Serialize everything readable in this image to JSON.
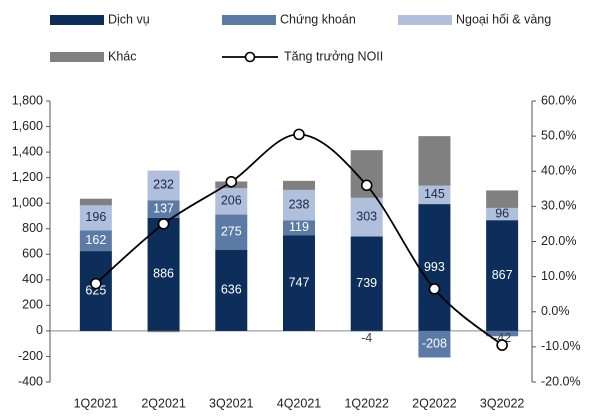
{
  "chart_data": {
    "type": "bar",
    "categories": [
      "1Q2021",
      "2Q2021",
      "3Q2021",
      "4Q2021",
      "1Q2022",
      "2Q2022",
      "3Q2022"
    ],
    "series": [
      {
        "name": "Dịch vụ",
        "color": "#0d2d5b",
        "values": [
          625,
          886,
          636,
          747,
          739,
          993,
          867
        ],
        "show_labels": true,
        "label_color": "#ffffff"
      },
      {
        "name": "Chứng khoán",
        "color": "#5b7aa6",
        "values": [
          162,
          137,
          275,
          119,
          -4,
          -208,
          -42
        ],
        "show_labels": true,
        "label_color": "#ffffff"
      },
      {
        "name": "Ngoại hối & vàng",
        "color": "#b0bfdc",
        "values": [
          196,
          232,
          206,
          238,
          303,
          145,
          96
        ],
        "show_labels": true,
        "label_color": "#1a2a44"
      },
      {
        "name": "Khác",
        "color": "#808080",
        "values": [
          52,
          -10,
          53,
          71,
          373,
          387,
          137
        ],
        "show_labels": false
      },
      {
        "name": "Tăng trưởng NOII",
        "type": "line",
        "axis": "y2",
        "color": "#000000",
        "values": [
          8,
          25,
          37,
          50.5,
          36,
          6.5,
          -9.5
        ]
      }
    ],
    "ylim": [
      -400,
      1800
    ],
    "yticks": [
      -400,
      -200,
      0,
      200,
      400,
      600,
      800,
      {
        "value": 1000,
        "label": "1,000"
      },
      {
        "value": 1200,
        "label": "1,200"
      },
      {
        "value": 1400,
        "label": "1,400"
      },
      {
        "value": 1600,
        "label": "1,600"
      },
      {
        "value": 1800,
        "label": "1,800"
      }
    ],
    "y2lim": [
      -20,
      60
    ],
    "y2ticks": [
      {
        "value": -20,
        "label": "-20.0%"
      },
      {
        "value": -10,
        "label": "-10.0%"
      },
      {
        "value": 0,
        "label": "0.0%"
      },
      {
        "value": 10,
        "label": "10.0%"
      },
      {
        "value": 20,
        "label": "20.0%"
      },
      {
        "value": 30,
        "label": "30.0%"
      },
      {
        "value": 40,
        "label": "40.0%"
      },
      {
        "value": 50,
        "label": "50.0%"
      },
      {
        "value": 60,
        "label": "60.0%"
      }
    ],
    "grid": false
  }
}
